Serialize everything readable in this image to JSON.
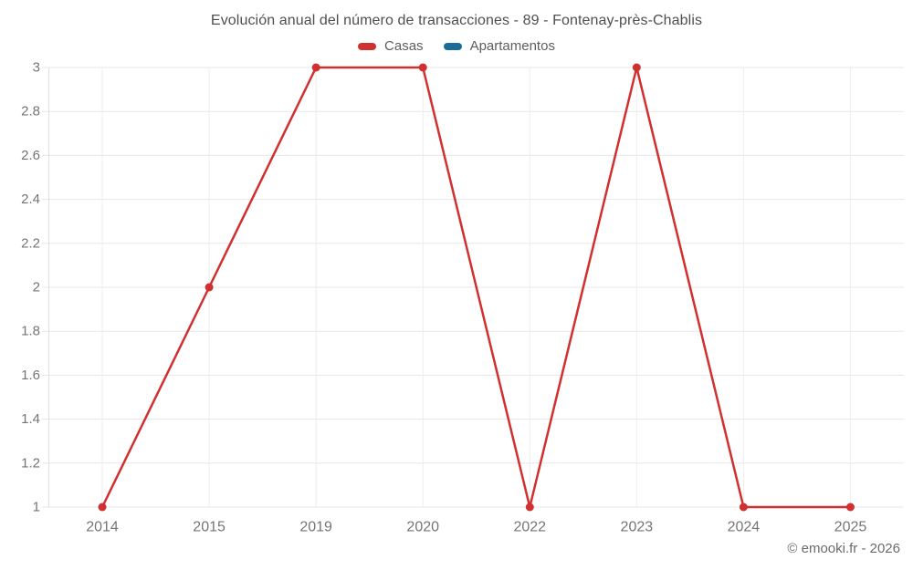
{
  "title": "Evolución anual del número de transacciones - 89 - Fontenay-près-Chablis",
  "legend": {
    "items": [
      {
        "label": "Casas",
        "color": "#d0302f"
      },
      {
        "label": "Apartamentos",
        "color": "#1b6d99"
      }
    ]
  },
  "footer": "© emooki.fr - 2026",
  "colors": {
    "casas": "#d0302f",
    "apartamentos": "#1b6d99",
    "grid_horizontal": "#e7e7e7",
    "grid_vertical": "#ededed",
    "axis_line": "#e0e0e0",
    "tick_label": "#757575",
    "title_text": "#4f4f4f"
  },
  "chart_data": {
    "type": "line",
    "title": "Evolución anual del número de transacciones - 89 - Fontenay-près-Chablis",
    "categories": [
      "2014",
      "2015",
      "2019",
      "2020",
      "2022",
      "2023",
      "2024",
      "2025"
    ],
    "series": [
      {
        "name": "Casas",
        "color": "#d0302f",
        "values": [
          1,
          2,
          3,
          3,
          1,
          3,
          1,
          1
        ]
      },
      {
        "name": "Apartamentos",
        "color": "#1b6d99",
        "values": []
      }
    ],
    "xlabel": "",
    "ylabel": "",
    "ylim": [
      1,
      3
    ],
    "yticks": [
      1,
      1.2,
      1.4,
      1.6,
      1.8,
      2,
      2.2,
      2.4,
      2.6,
      2.8,
      3
    ],
    "ytick_labels": [
      "1",
      "1.2",
      "1.4",
      "1.6",
      "1.8",
      "2",
      "2.2",
      "2.4",
      "2.6",
      "2.8",
      "3"
    ],
    "grid": true,
    "legend_position": "top"
  }
}
